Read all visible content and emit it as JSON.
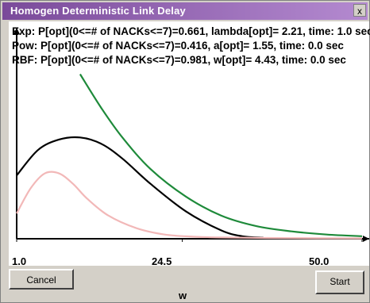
{
  "window": {
    "title": "Homogen Deterministic Link Delay",
    "close_label": "x"
  },
  "results": [
    "Exp: P[opt](0<=# of NACKs<=7)=0.661,  lambda[opt]= 2.21, time:  1.0 sec",
    "Pow: P[opt](0<=# of NACKs<=7)=0.416,  a[opt]= 1.55, time:  0.0 sec",
    "RBF: P[opt](0<=# of NACKs<=7)=0.981,  w[opt]= 4.43, time:  0.0 sec"
  ],
  "axis": {
    "x_ticks": [
      "1.0",
      "24.5",
      "50.0"
    ],
    "x_label": "w"
  },
  "buttons": {
    "cancel": "Cancel",
    "start": "Start"
  },
  "chart_data": {
    "type": "line",
    "x_range": [
      1.0,
      50.0
    ],
    "series": [
      {
        "color": "#1e8a3a",
        "x": [
          10,
          13,
          16,
          20,
          25,
          30,
          35,
          40,
          45,
          50
        ],
        "y_rel": [
          0.78,
          0.62,
          0.48,
          0.33,
          0.2,
          0.11,
          0.06,
          0.035,
          0.02,
          0.012
        ]
      },
      {
        "color": "#000000",
        "x": [
          1,
          4,
          7,
          10,
          13,
          16,
          20,
          25,
          30,
          33,
          36
        ],
        "y_rel": [
          0.3,
          0.42,
          0.47,
          0.48,
          0.45,
          0.38,
          0.26,
          0.13,
          0.04,
          0.012,
          0.005
        ]
      },
      {
        "color": "#f2b8b8",
        "x": [
          1,
          3,
          5,
          7,
          9,
          11,
          14,
          18,
          22,
          26,
          30,
          40,
          50
        ],
        "y_rel": [
          0.12,
          0.24,
          0.31,
          0.31,
          0.26,
          0.19,
          0.11,
          0.05,
          0.02,
          0.01,
          0.006,
          0.003,
          0.002
        ]
      }
    ],
    "grid": false
  }
}
